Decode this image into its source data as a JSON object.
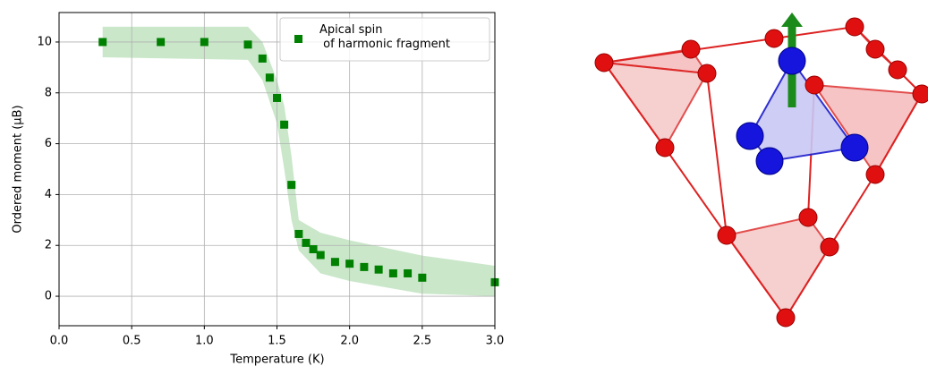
{
  "chart_data": {
    "type": "scatter",
    "xlabel": "Temperature (K)",
    "ylabel": "Ordered moment (μB)",
    "xlim": [
      0,
      3
    ],
    "ylim": [
      -1.16,
      11.16
    ],
    "xticks": [
      {
        "value": 0,
        "label": "0.0"
      },
      {
        "value": 0.5,
        "label": "0.5"
      },
      {
        "value": 1,
        "label": "1.0"
      },
      {
        "value": 1.5,
        "label": "1.5"
      },
      {
        "value": 2,
        "label": "2.0"
      },
      {
        "value": 2.5,
        "label": "2.5"
      },
      {
        "value": 3,
        "label": "3.0"
      }
    ],
    "yticks": [
      0,
      2,
      4,
      6,
      8,
      10
    ],
    "grid": true,
    "legend": "upper right",
    "series": [
      {
        "name": "Apical spin\n of harmonic fragment",
        "color": "#008000",
        "x": [
          0.3,
          0.7,
          1.0,
          1.3,
          1.4,
          1.45,
          1.5,
          1.55,
          1.6,
          1.65,
          1.7,
          1.75,
          1.8,
          1.9,
          2.0,
          2.1,
          2.2,
          2.3,
          2.4,
          2.5,
          3.0
        ],
        "values": [
          10,
          10,
          10,
          9.9,
          9.35,
          8.6,
          7.8,
          6.75,
          4.38,
          2.45,
          2.1,
          1.85,
          1.62,
          1.35,
          1.28,
          1.15,
          1.05,
          0.9,
          0.9,
          0.73,
          0.55
        ]
      }
    ],
    "band": {
      "color": "#2ca02c",
      "x": [
        0.3,
        1.3,
        1.4,
        1.5,
        1.55,
        1.6,
        1.65,
        1.8,
        2.0,
        2.5,
        3.0
      ],
      "upper": [
        10.6,
        10.6,
        10.0,
        8.5,
        7.5,
        5.5,
        3.0,
        2.5,
        2.2,
        1.6,
        1.2
      ],
      "lower": [
        9.4,
        9.3,
        8.5,
        6.8,
        5.0,
        3.0,
        1.8,
        0.9,
        0.6,
        0.1,
        0.0
      ]
    }
  }
}
